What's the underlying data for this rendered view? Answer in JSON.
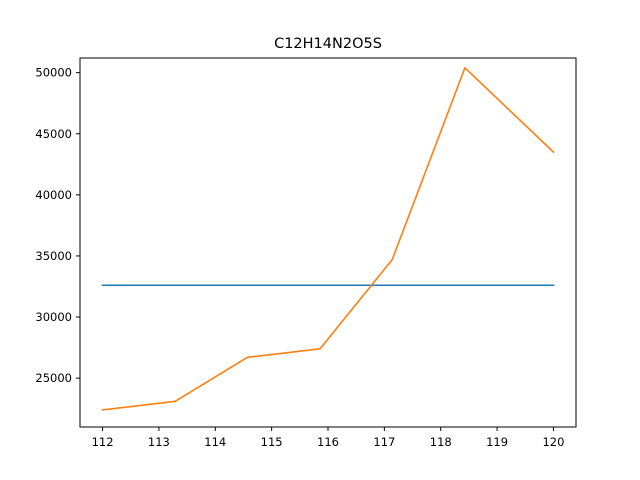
{
  "chart_data": {
    "type": "line",
    "title": "C12H14N2O5S",
    "xlabel": "",
    "ylabel": "",
    "xlim": [
      111.6,
      120.4
    ],
    "ylim": [
      21000,
      51200
    ],
    "xticks": [
      112,
      113,
      114,
      115,
      116,
      117,
      118,
      119,
      120
    ],
    "yticks": [
      25000,
      30000,
      35000,
      40000,
      45000,
      50000
    ],
    "grid": false,
    "legend": "none",
    "series": [
      {
        "color": "#1f77b4",
        "x": [
          112,
          120
        ],
        "y": [
          32600,
          32600
        ]
      },
      {
        "color": "#ff7f0e",
        "x": [
          112,
          113.29,
          114.57,
          115.86,
          117.14,
          118.43,
          120
        ],
        "y": [
          22400,
          23100,
          26700,
          27400,
          34700,
          50400,
          43500
        ]
      }
    ]
  }
}
